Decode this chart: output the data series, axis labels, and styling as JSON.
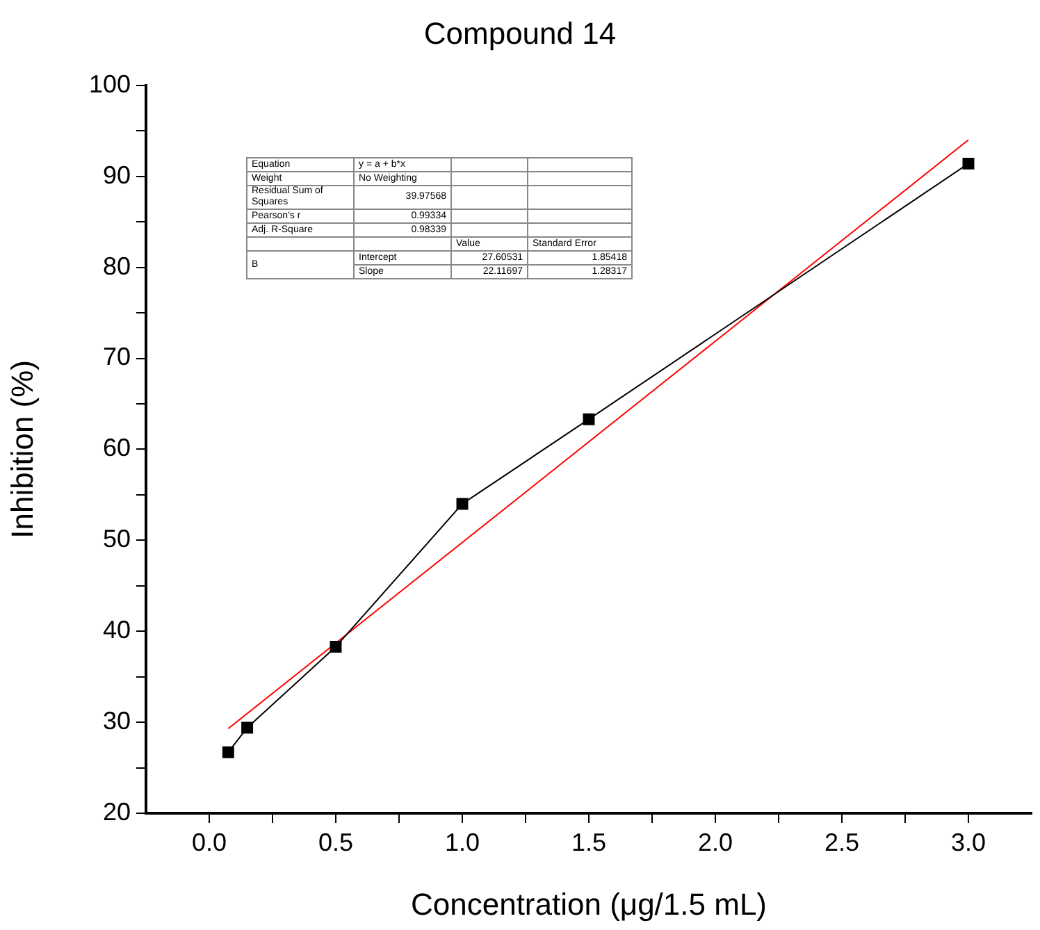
{
  "chart_data": {
    "type": "line",
    "title": "Compound 14",
    "xlabel": "Concentration (μg/1.5 mL)",
    "ylabel": "Inhibition (%)",
    "xlim": [
      -0.25,
      3.25
    ],
    "xticks": [
      {
        "value": 0,
        "label": "0.0"
      },
      {
        "value": 0.25,
        "label": null
      },
      0.5,
      {
        "value": 0.75,
        "label": null
      },
      {
        "value": 1,
        "label": "1.0"
      },
      {
        "value": 1.25,
        "label": null
      },
      1.5,
      {
        "value": 1.75,
        "label": null
      },
      {
        "value": 2,
        "label": "2.0"
      },
      {
        "value": 2.25,
        "label": null
      },
      2.5,
      {
        "value": 2.75,
        "label": null
      },
      {
        "value": 3,
        "label": "3.0"
      }
    ],
    "ylim": [
      20,
      100
    ],
    "yticks": [
      20,
      {
        "value": 25,
        "label": null
      },
      30,
      {
        "value": 35,
        "label": null
      },
      40,
      {
        "value": 45,
        "label": null
      },
      50,
      {
        "value": 55,
        "label": null
      },
      60,
      {
        "value": 65,
        "label": null
      },
      70,
      {
        "value": 75,
        "label": null
      },
      80,
      {
        "value": 85,
        "label": null
      },
      90,
      {
        "value": 95,
        "label": null
      },
      100
    ],
    "grid": false,
    "legend": false,
    "marker": "square",
    "series": [
      {
        "color": "#000000",
        "x": [
          0.075,
          0.15,
          0.5,
          1.0,
          1.5,
          3.0
        ],
        "values": [
          26.7,
          29.4,
          38.3,
          54.0,
          63.3,
          91.4
        ]
      },
      {
        "marker": "none",
        "color": "#ff0000",
        "x": [
          0.075,
          3.0
        ],
        "values": [
          29.3,
          94.0
        ]
      }
    ],
    "annotations": [
      "Equation",
      "y = a + b*x",
      "Weight",
      "No Weighting",
      "Residual Sum of Squares",
      "39.97568",
      "Pearson's r",
      "0.99334",
      "Adj. R-Square",
      "0.98339",
      "Value",
      "Standard Error",
      "B",
      "Intercept",
      "27.60531",
      "1.85418",
      "Slope",
      "22.11697",
      "1.28317"
    ]
  }
}
